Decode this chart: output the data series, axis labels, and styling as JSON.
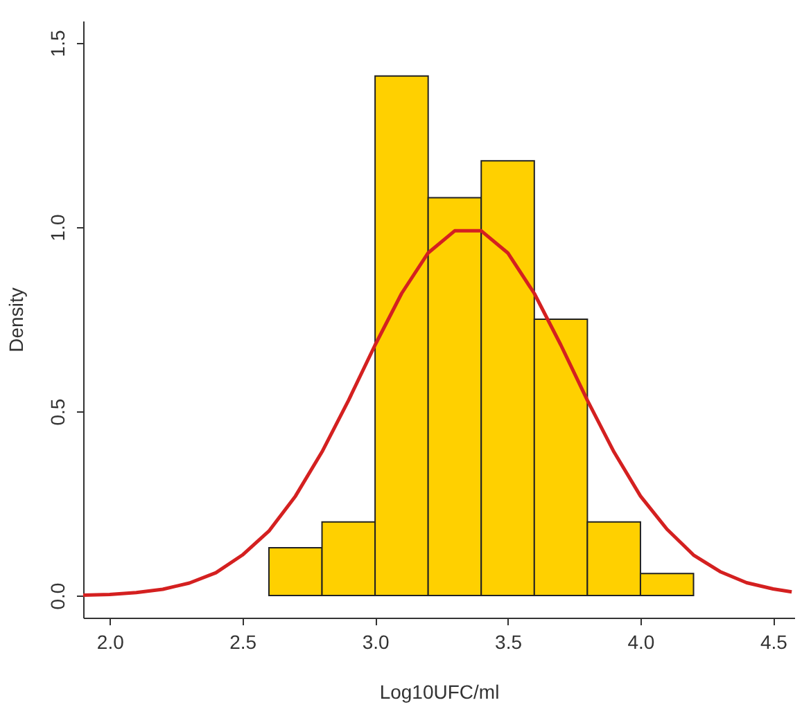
{
  "chart_data": {
    "type": "histogram",
    "xlabel": "Log10UFC/ml",
    "ylabel": "Density",
    "bins": [
      2.6,
      2.8,
      3.0,
      3.2,
      3.4,
      3.6,
      3.8,
      4.0,
      4.2
    ],
    "values": [
      0.13,
      0.2,
      1.41,
      1.08,
      1.18,
      0.75,
      0.2,
      0.06
    ],
    "color": "#ffd000",
    "series": [
      {
        "type": "line",
        "color": "#d42020",
        "x": [
          1.9,
          2.0,
          2.1,
          2.2,
          2.3,
          2.4,
          2.5,
          2.6,
          2.7,
          2.8,
          2.9,
          3.0,
          3.1,
          3.2,
          3.3,
          3.4,
          3.5,
          3.6,
          3.7,
          3.8,
          3.9,
          4.0,
          4.1,
          4.2,
          4.3,
          4.4,
          4.5,
          4.57
        ],
        "values": [
          0.001,
          0.003,
          0.008,
          0.017,
          0.034,
          0.062,
          0.11,
          0.175,
          0.27,
          0.39,
          0.53,
          0.68,
          0.82,
          0.93,
          0.99,
          0.99,
          0.93,
          0.82,
          0.68,
          0.53,
          0.39,
          0.27,
          0.18,
          0.11,
          0.065,
          0.035,
          0.018,
          0.01
        ]
      }
    ],
    "xlim": [
      1.9,
      4.58
    ],
    "ylim": [
      -0.06,
      1.56
    ],
    "xticks": [
      {
        "value": 2,
        "label": "2.0"
      },
      2.5,
      {
        "value": 3,
        "label": "3.0"
      },
      3.5,
      {
        "value": 4,
        "label": "4.0"
      },
      4.5
    ],
    "yticks": [
      {
        "value": 0,
        "label": "0.0"
      },
      0.5,
      {
        "value": 1,
        "label": "1.0"
      },
      1.5
    ],
    "grid": false
  }
}
